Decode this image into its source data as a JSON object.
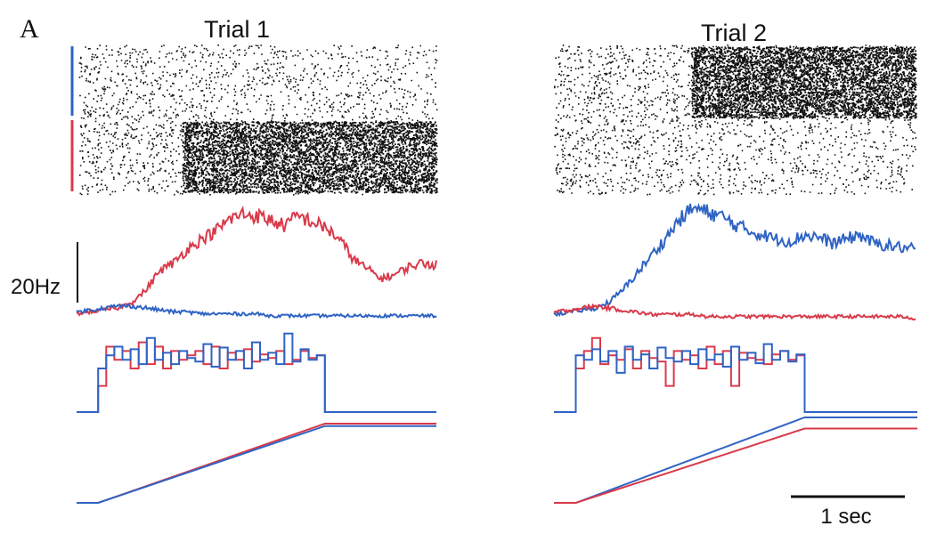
{
  "figure": {
    "panel_label": "A",
    "colors": {
      "red": "#d93a4a",
      "blue": "#2f63c4",
      "ink": "#111111"
    }
  },
  "chart_data": [
    {
      "type": "raster",
      "title": "Trial 1",
      "rows": [
        {
          "color_marker": "blue",
          "description": "spike raster",
          "bursts": []
        },
        {
          "color_marker": "red",
          "description": "spike raster",
          "bursts": [
            {
              "start": 0.29,
              "end": 1.0,
              "density": "high"
            }
          ]
        }
      ]
    },
    {
      "type": "raster",
      "title": "Trial 2",
      "rows": [
        {
          "color_marker": "blue",
          "bursts": [
            {
              "start": 0.38,
              "end": 1.0,
              "density": "high"
            }
          ]
        },
        {
          "color_marker": "red",
          "bursts": []
        }
      ]
    },
    {
      "type": "line",
      "title": "Trial 1",
      "ylabel": "",
      "scale_bar": "20Hz",
      "series": [
        {
          "color": "red",
          "values": [
            2,
            3,
            4,
            5,
            8,
            14,
            24,
            28,
            35,
            40,
            44,
            50,
            53,
            52,
            50,
            47,
            52,
            49,
            46,
            40,
            30,
            25,
            20,
            22,
            26,
            28,
            27
          ]
        },
        {
          "color": "blue",
          "values": [
            3,
            4,
            5,
            6,
            6,
            5,
            4,
            3,
            3,
            2,
            2,
            2,
            2,
            2,
            1,
            1,
            1,
            1,
            1,
            1,
            1,
            1,
            1,
            1,
            1,
            1,
            1
          ]
        }
      ]
    },
    {
      "type": "line",
      "title": "Trial 2",
      "series": [
        {
          "color": "blue",
          "values": [
            2,
            3,
            4,
            5,
            8,
            14,
            22,
            30,
            38,
            47,
            53,
            51,
            49,
            45,
            42,
            40,
            38,
            37,
            40,
            39,
            36,
            38,
            40,
            36,
            35,
            34,
            33
          ]
        },
        {
          "color": "red",
          "values": [
            3,
            4,
            5,
            6,
            5,
            4,
            3,
            2,
            2,
            2,
            2,
            1,
            1,
            1,
            1,
            1,
            1,
            1,
            1,
            1,
            1,
            1,
            1,
            1,
            1,
            1,
            0
          ]
        }
      ]
    },
    {
      "type": "step",
      "title": "Trial 1",
      "stimulus_end": 0.69,
      "series": [
        {
          "color": "red",
          "values": [
            0.3,
            0.75,
            0.6,
            0.7,
            0.5,
            0.8,
            0.55,
            0.75,
            0.5,
            0.7,
            0.6,
            0.65,
            0.7,
            0.55,
            0.75,
            0.5,
            0.68,
            0.6,
            0.72,
            0.58,
            0.66,
            0.62,
            0.7,
            0.55,
            0.6,
            0.7,
            0.62,
            0.65
          ]
        },
        {
          "color": "blue",
          "values": [
            0.5,
            0.65,
            0.75,
            0.6,
            0.72,
            0.55,
            0.85,
            0.6,
            0.68,
            0.55,
            0.7,
            0.62,
            0.58,
            0.78,
            0.52,
            0.74,
            0.6,
            0.7,
            0.5,
            0.8,
            0.6,
            0.68,
            0.55,
            0.9,
            0.58,
            0.72,
            0.6,
            0.65
          ]
        }
      ]
    },
    {
      "type": "step",
      "title": "Trial 2",
      "stimulus_end": 0.69,
      "series": [
        {
          "color": "red",
          "values": [
            0.5,
            0.7,
            0.85,
            0.55,
            0.65,
            0.6,
            0.72,
            0.5,
            0.7,
            0.62,
            0.58,
            0.3,
            0.7,
            0.6,
            0.65,
            0.5,
            0.75,
            0.55,
            0.7,
            0.3,
            0.68,
            0.62,
            0.6,
            0.55,
            0.66,
            0.7,
            0.6,
            0.65
          ]
        },
        {
          "color": "blue",
          "values": [
            0.65,
            0.6,
            0.72,
            0.58,
            0.7,
            0.45,
            0.75,
            0.6,
            0.66,
            0.5,
            0.74,
            0.62,
            0.58,
            0.7,
            0.55,
            0.72,
            0.6,
            0.66,
            0.52,
            0.75,
            0.6,
            0.68,
            0.56,
            0.78,
            0.6,
            0.7,
            0.58,
            0.66
          ]
        }
      ]
    },
    {
      "type": "line",
      "title": "Trial 1",
      "series": [
        {
          "color": "red",
          "x": [
            0,
            0.06,
            0.69,
            1.0
          ],
          "values": [
            0,
            0,
            1.0,
            1.0
          ]
        },
        {
          "color": "blue",
          "x": [
            0,
            0.06,
            0.69,
            1.0
          ],
          "values": [
            0,
            0,
            0.97,
            0.97
          ]
        }
      ]
    },
    {
      "type": "line",
      "title": "Trial 2",
      "series": [
        {
          "color": "blue",
          "x": [
            0,
            0.06,
            0.69,
            1.0
          ],
          "values": [
            0,
            0,
            1.0,
            1.0
          ]
        },
        {
          "color": "red",
          "x": [
            0,
            0.06,
            0.69,
            1.0
          ],
          "values": [
            0,
            0,
            0.87,
            0.87
          ]
        }
      ]
    }
  ],
  "scale_bars": {
    "rate_label": "20Hz",
    "time_label": "1 sec"
  }
}
